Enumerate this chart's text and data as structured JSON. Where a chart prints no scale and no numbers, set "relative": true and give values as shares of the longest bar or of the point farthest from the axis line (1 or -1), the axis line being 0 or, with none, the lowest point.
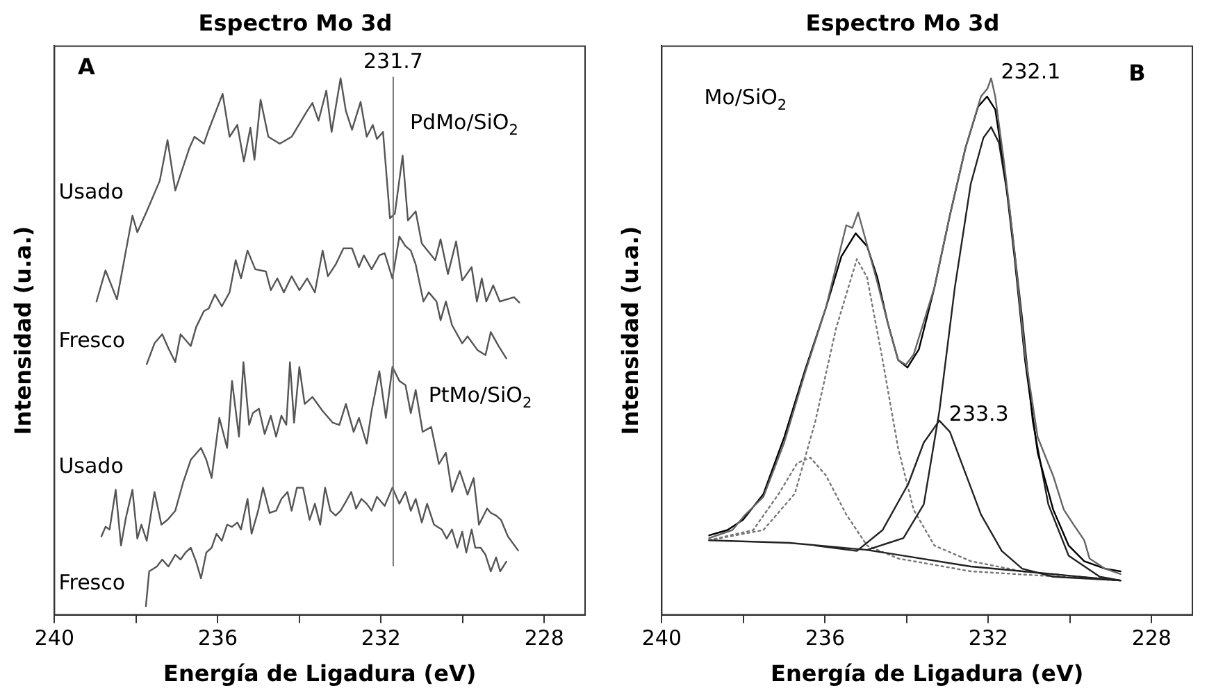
{
  "chart_data": [
    {
      "type": "line",
      "title": "Espectro Mo 3d",
      "xlabel": "Energía de Ligadura (eV)",
      "ylabel": "Intensidad (u.a.)",
      "relative": true,
      "tick_labels": "x",
      "xlim": [
        240,
        227
      ],
      "xticks": [
        240,
        {
          "value": 238,
          "label": null
        },
        236,
        {
          "value": 234,
          "label": null
        },
        232,
        {
          "value": 230,
          "label": null
        },
        228
      ],
      "ref_lines": [
        {
          "axis": "x",
          "value": 231.7,
          "label": "231.7",
          "color": "#777777"
        }
      ],
      "annotations": [
        "A",
        "PdMo/SiO$_{2}$",
        "PtMo/SiO$_{2}$"
      ],
      "series": [
        {
          "name": "Usado",
          "color": "#555555",
          "x": [
            238.97,
            238.75,
            238.47,
            238.09,
            237.97,
            237.74,
            237.42,
            237.23,
            237.04,
            236.7,
            236.57,
            236.34,
            236.22,
            235.88,
            235.71,
            235.52,
            235.36,
            235.2,
            235.1,
            234.95,
            234.76,
            234.48,
            234.19,
            233.81,
            233.68,
            233.53,
            233.34,
            233.21,
            232.99,
            232.86,
            232.71,
            232.5,
            232.35,
            232.2,
            232.1,
            231.95,
            231.78,
            231.66,
            231.47,
            231.34,
            231.15,
            231.0,
            230.67,
            230.54,
            230.36,
            230.16,
            230.01,
            229.78,
            229.65,
            229.53,
            229.42,
            229.25,
            229.09,
            228.74,
            228.61
          ],
          "values": [
            0.584,
            0.642,
            0.588,
            0.744,
            0.713,
            0.752,
            0.809,
            0.885,
            0.791,
            0.869,
            0.891,
            0.878,
            0.904,
            0.971,
            0.891,
            0.913,
            0.845,
            0.908,
            0.848,
            0.96,
            0.891,
            0.878,
            0.891,
            0.939,
            0.954,
            0.921,
            0.977,
            0.9,
            1.0,
            0.939,
            0.904,
            0.956,
            0.891,
            0.913,
            0.887,
            0.9,
            0.739,
            0.748,
            0.856,
            0.735,
            0.752,
            0.692,
            0.661,
            0.7,
            0.635,
            0.696,
            0.623,
            0.648,
            0.584,
            0.627,
            0.584,
            0.614,
            0.584,
            0.592,
            0.582
          ]
        },
        {
          "name": "Fresco",
          "color": "#555555",
          "x": [
            237.74,
            237.55,
            237.36,
            237.21,
            237.04,
            236.91,
            236.66,
            236.53,
            236.34,
            236.22,
            236.07,
            235.9,
            235.71,
            235.56,
            235.43,
            235.27,
            235.08,
            234.82,
            234.7,
            234.54,
            234.38,
            234.19,
            234.0,
            233.81,
            233.62,
            233.43,
            233.3,
            233.11,
            232.92,
            232.71,
            232.54,
            232.42,
            232.23,
            232.04,
            231.91,
            231.72,
            231.55,
            231.4,
            231.27,
            231.15,
            230.96,
            230.83,
            230.64,
            230.54,
            230.41,
            230.26,
            230.01,
            229.88,
            229.63,
            229.44,
            229.31,
            229.12,
            228.93
          ],
          "values": [
            0.467,
            0.506,
            0.523,
            0.497,
            0.471,
            0.523,
            0.501,
            0.536,
            0.566,
            0.571,
            0.597,
            0.575,
            0.601,
            0.661,
            0.627,
            0.679,
            0.644,
            0.64,
            0.605,
            0.627,
            0.601,
            0.631,
            0.605,
            0.627,
            0.601,
            0.679,
            0.631,
            0.653,
            0.683,
            0.683,
            0.648,
            0.67,
            0.644,
            0.67,
            0.674,
            0.627,
            0.705,
            0.687,
            0.679,
            0.653,
            0.584,
            0.601,
            0.584,
            0.549,
            0.584,
            0.54,
            0.506,
            0.519,
            0.493,
            0.484,
            0.527,
            0.501,
            0.478
          ]
        },
        {
          "name": "Usado",
          "color": "#555555",
          "x": [
            238.85,
            238.75,
            238.65,
            238.5,
            238.37,
            238.25,
            238.09,
            237.97,
            237.87,
            237.74,
            237.55,
            237.38,
            237.23,
            237.04,
            236.85,
            236.66,
            236.41,
            236.28,
            236.15,
            235.96,
            235.77,
            235.65,
            235.48,
            235.37,
            235.23,
            235.14,
            234.99,
            234.85,
            234.7,
            234.57,
            234.44,
            234.32,
            234.23,
            234.13,
            234.0,
            233.87,
            233.68,
            233.43,
            233.18,
            233.02,
            232.86,
            232.67,
            232.54,
            232.35,
            232.23,
            232.04,
            231.88,
            231.72,
            231.55,
            231.4,
            231.27,
            231.15,
            230.98,
            230.77,
            230.58,
            230.41,
            230.26,
            230.07,
            229.88,
            229.73,
            229.6,
            229.4,
            229.31,
            229.18,
            229.06,
            228.89,
            228.64
          ],
          "values": [
            0.146,
            0.164,
            0.159,
            0.233,
            0.129,
            0.181,
            0.233,
            0.142,
            0.168,
            0.138,
            0.229,
            0.168,
            0.177,
            0.194,
            0.246,
            0.289,
            0.311,
            0.289,
            0.255,
            0.367,
            0.311,
            0.436,
            0.332,
            0.471,
            0.354,
            0.376,
            0.384,
            0.337,
            0.371,
            0.332,
            0.371,
            0.354,
            0.471,
            0.358,
            0.462,
            0.393,
            0.406,
            0.38,
            0.358,
            0.354,
            0.393,
            0.341,
            0.367,
            0.319,
            0.38,
            0.454,
            0.367,
            0.462,
            0.436,
            0.428,
            0.376,
            0.419,
            0.341,
            0.35,
            0.281,
            0.302,
            0.229,
            0.268,
            0.224,
            0.255,
            0.168,
            0.198,
            0.19,
            0.185,
            0.177,
            0.146,
            0.12
          ]
        },
        {
          "name": "Fresco",
          "color": "#555555",
          "x": [
            237.76,
            237.68,
            237.49,
            237.36,
            237.21,
            237.04,
            236.91,
            236.79,
            236.66,
            236.53,
            236.41,
            236.28,
            236.15,
            236.03,
            235.9,
            235.77,
            235.65,
            235.52,
            235.43,
            235.27,
            235.17,
            235.01,
            234.89,
            234.73,
            234.57,
            234.44,
            234.29,
            234.19,
            234.06,
            233.91,
            233.75,
            233.62,
            233.49,
            233.37,
            233.24,
            233.11,
            232.99,
            232.86,
            232.73,
            232.61,
            232.48,
            232.35,
            232.23,
            232.1,
            231.91,
            231.72,
            231.55,
            231.4,
            231.27,
            231.15,
            231.0,
            230.87,
            230.7,
            230.51,
            230.39,
            230.26,
            230.13,
            230.01,
            229.91,
            229.78,
            229.69,
            229.56,
            229.44,
            229.31,
            229.18,
            229.08,
            228.93
          ],
          "values": [
            0.016,
            0.081,
            0.09,
            0.103,
            0.09,
            0.112,
            0.103,
            0.116,
            0.125,
            0.099,
            0.068,
            0.116,
            0.125,
            0.151,
            0.138,
            0.168,
            0.164,
            0.172,
            0.159,
            0.216,
            0.151,
            0.194,
            0.237,
            0.19,
            0.194,
            0.216,
            0.229,
            0.194,
            0.237,
            0.237,
            0.177,
            0.207,
            0.168,
            0.237,
            0.194,
            0.185,
            0.194,
            0.211,
            0.229,
            0.198,
            0.216,
            0.207,
            0.194,
            0.22,
            0.203,
            0.237,
            0.207,
            0.229,
            0.194,
            0.216,
            0.172,
            0.207,
            0.168,
            0.159,
            0.142,
            0.159,
            0.125,
            0.155,
            0.116,
            0.159,
            0.125,
            0.125,
            0.112,
            0.081,
            0.107,
            0.081,
            0.099
          ]
        }
      ]
    },
    {
      "type": "line",
      "title": "Espectro Mo 3d",
      "xlabel": "Energía de Ligadura (eV)",
      "ylabel": "Intensidad (u.a.)",
      "relative": true,
      "tick_labels": "x",
      "xlim": [
        240,
        227
      ],
      "xticks": [
        240,
        {
          "value": 238,
          "label": null
        },
        236,
        {
          "value": 234,
          "label": null
        },
        232,
        {
          "value": 230,
          "label": null
        },
        228
      ],
      "annotations": [
        "B",
        "Mo/SiO$_{2}$",
        {
          "text": "232.1",
          "x": 231.93,
          "y": 1.0
        },
        {
          "text": "233.3",
          "x": 233.2,
          "y": 0.362
        }
      ],
      "series": [
        {
          "color": "#666666",
          "x": [
            238.84,
            238.27,
            237.95,
            237.76,
            237.51,
            237.0,
            236.49,
            235.98,
            235.48,
            235.33,
            235.19,
            235.03,
            234.72,
            234.46,
            234.21,
            234.02,
            233.83,
            233.32,
            232.94,
            232.56,
            232.18,
            232.02,
            231.93,
            231.83,
            231.61,
            231.36,
            231.1,
            230.79,
            230.41,
            230.15,
            229.9,
            229.65,
            229.52,
            229.14,
            228.76
          ],
          "values": [
            0.143,
            0.158,
            0.187,
            0.201,
            0.22,
            0.321,
            0.451,
            0.572,
            0.726,
            0.721,
            0.75,
            0.706,
            0.62,
            0.543,
            0.475,
            0.466,
            0.485,
            0.61,
            0.745,
            0.87,
            0.966,
            0.981,
            1.0,
            0.966,
            0.841,
            0.678,
            0.485,
            0.331,
            0.259,
            0.196,
            0.167,
            0.139,
            0.105,
            0.086,
            0.076
          ]
        },
        {
          "color": "#000000",
          "x": [
            238.84,
            238.39,
            238.01,
            237.51,
            237.0,
            236.49,
            235.98,
            235.6,
            235.25,
            234.97,
            234.72,
            234.46,
            234.21,
            233.98,
            233.7,
            233.32,
            232.94,
            232.56,
            232.25,
            232.03,
            231.83,
            231.61,
            231.36,
            231.1,
            230.79,
            230.41,
            230.03,
            229.65,
            229.14,
            228.76
          ],
          "values": [
            0.148,
            0.158,
            0.177,
            0.225,
            0.331,
            0.456,
            0.572,
            0.668,
            0.711,
            0.687,
            0.629,
            0.543,
            0.475,
            0.461,
            0.495,
            0.61,
            0.745,
            0.87,
            0.947,
            0.966,
            0.942,
            0.832,
            0.668,
            0.475,
            0.302,
            0.196,
            0.129,
            0.1,
            0.086,
            0.081
          ]
        },
        {
          "color": "#222222",
          "x": [
            238.84,
            236.87,
            234.97,
            232.43,
            228.76
          ],
          "values": [
            0.139,
            0.134,
            0.121,
            0.09,
            0.064
          ]
        },
        {
          "color": "#222222",
          "x": [
            234.97,
            234.08,
            233.58,
            233.2,
            232.82,
            232.43,
            232.12,
            231.93,
            231.74,
            231.49,
            231.17,
            230.91,
            230.53,
            230.03,
            229.27,
            228.76
          ],
          "values": [
            0.121,
            0.143,
            0.206,
            0.379,
            0.61,
            0.803,
            0.889,
            0.909,
            0.88,
            0.764,
            0.552,
            0.36,
            0.206,
            0.11,
            0.071,
            0.064
          ]
        },
        {
          "color": "#222222",
          "x": [
            236.24,
            235.22,
            234.59,
            233.96,
            233.58,
            233.2,
            232.94,
            232.56,
            232.18,
            231.67,
            231.17,
            230.41,
            228.76
          ],
          "values": [
            0.129,
            0.119,
            0.158,
            0.244,
            0.321,
            0.362,
            0.341,
            0.264,
            0.187,
            0.119,
            0.086,
            0.071,
            0.064
          ]
        },
        {
          "color": "#777777",
          "line_style": "dotted",
          "x": [
            238.84,
            237.51,
            236.74,
            236.24,
            235.73,
            235.22,
            234.97,
            234.59,
            234.21,
            233.83,
            233.32,
            232.43,
            231.17,
            228.76
          ],
          "values": [
            0.139,
            0.158,
            0.226,
            0.36,
            0.534,
            0.663,
            0.629,
            0.475,
            0.311,
            0.196,
            0.129,
            0.1,
            0.081,
            0.064
          ]
        },
        {
          "color": "#777777",
          "line_style": "dotted",
          "x": [
            238.84,
            237.76,
            237.13,
            236.68,
            236.36,
            235.98,
            235.48,
            234.97,
            234.21,
            232.43,
            228.76
          ],
          "values": [
            0.139,
            0.158,
            0.226,
            0.283,
            0.293,
            0.26,
            0.187,
            0.129,
            0.105,
            0.081,
            0.064
          ]
        }
      ]
    }
  ]
}
